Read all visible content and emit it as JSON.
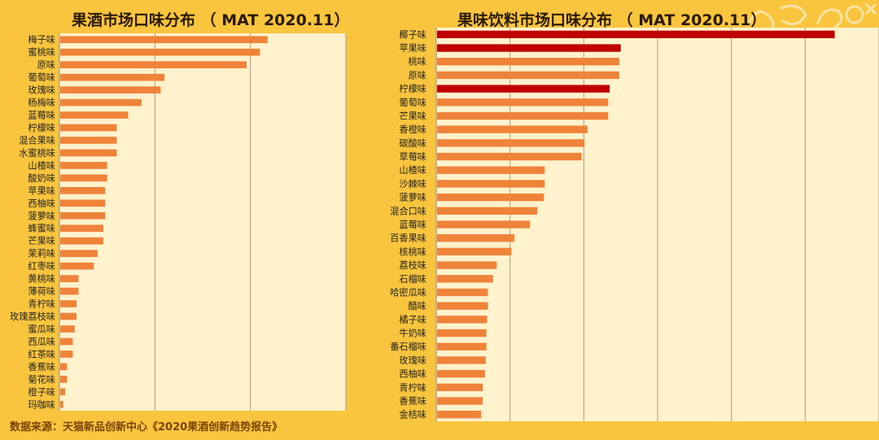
{
  "chart_data": [
    {
      "type": "bar",
      "orientation": "horizontal",
      "title": "果酒市场口味分布 （ MAT 2020.11）",
      "categories": [
        "梅子味",
        "蜜桃味",
        "原味",
        "葡萄味",
        "玫瑰味",
        "杨梅味",
        "蓝莓味",
        "柠檬味",
        "混合果味",
        "水蜜桃味",
        "山楂味",
        "酸奶味",
        "苹果味",
        "西柚味",
        "菠萝味",
        "蜂蜜味",
        "芒果味",
        "茉莉味",
        "红枣味",
        "黄桃味",
        "薄荷味",
        "青柠味",
        "玫瑰荔枝味",
        "蜜瓜味",
        "西瓜味",
        "红茶味",
        "香蕉味",
        "菊花味",
        "橙子味",
        "玛咖味"
      ],
      "values": [
        109,
        105,
        98,
        55,
        53,
        43,
        36,
        30,
        30,
        30,
        25,
        25,
        24,
        24,
        24,
        23,
        23,
        20,
        18,
        10,
        10,
        9,
        9,
        8,
        7,
        7,
        4,
        4,
        3,
        2
      ],
      "highlight": [],
      "xlim": [
        0,
        150
      ],
      "grid": true,
      "bar_color": "#f0833a",
      "highlight_color": "#c00000"
    },
    {
      "type": "bar",
      "orientation": "horizontal",
      "title": "果味饮料市场口味分布 （ MAT 2020.11）",
      "categories": [
        "椰子味",
        "苹果味",
        "桃味",
        "原味",
        "柠檬味",
        "葡萄味",
        "芒果味",
        "香橙味",
        "碳酸味",
        "草莓味",
        "山楂味",
        "沙棘味",
        "菠萝味",
        "混合口味",
        "蓝莓味",
        "百香果味",
        "核桃味",
        "荔枝味",
        "石榴味",
        "哈密瓜味",
        "醋味",
        "橘子味",
        "牛奶味",
        "番石榴味",
        "玫瑰味",
        "西柚味",
        "青柠味",
        "香蕉味",
        "金桔味"
      ],
      "values": [
        540,
        250,
        248,
        248,
        235,
        233,
        233,
        205,
        201,
        197,
        147,
        147,
        146,
        137,
        127,
        106,
        102,
        82,
        77,
        70,
        70,
        69,
        68,
        68,
        67,
        66,
        63,
        63,
        61
      ],
      "highlight": [
        0,
        1,
        4
      ],
      "xlim": [
        0,
        600
      ],
      "grid": true,
      "bar_color": "#f0833a",
      "highlight_color": "#c00000"
    }
  ],
  "source": "数据来源：天猫新品创新中心《2020果酒创新趋势报告》"
}
